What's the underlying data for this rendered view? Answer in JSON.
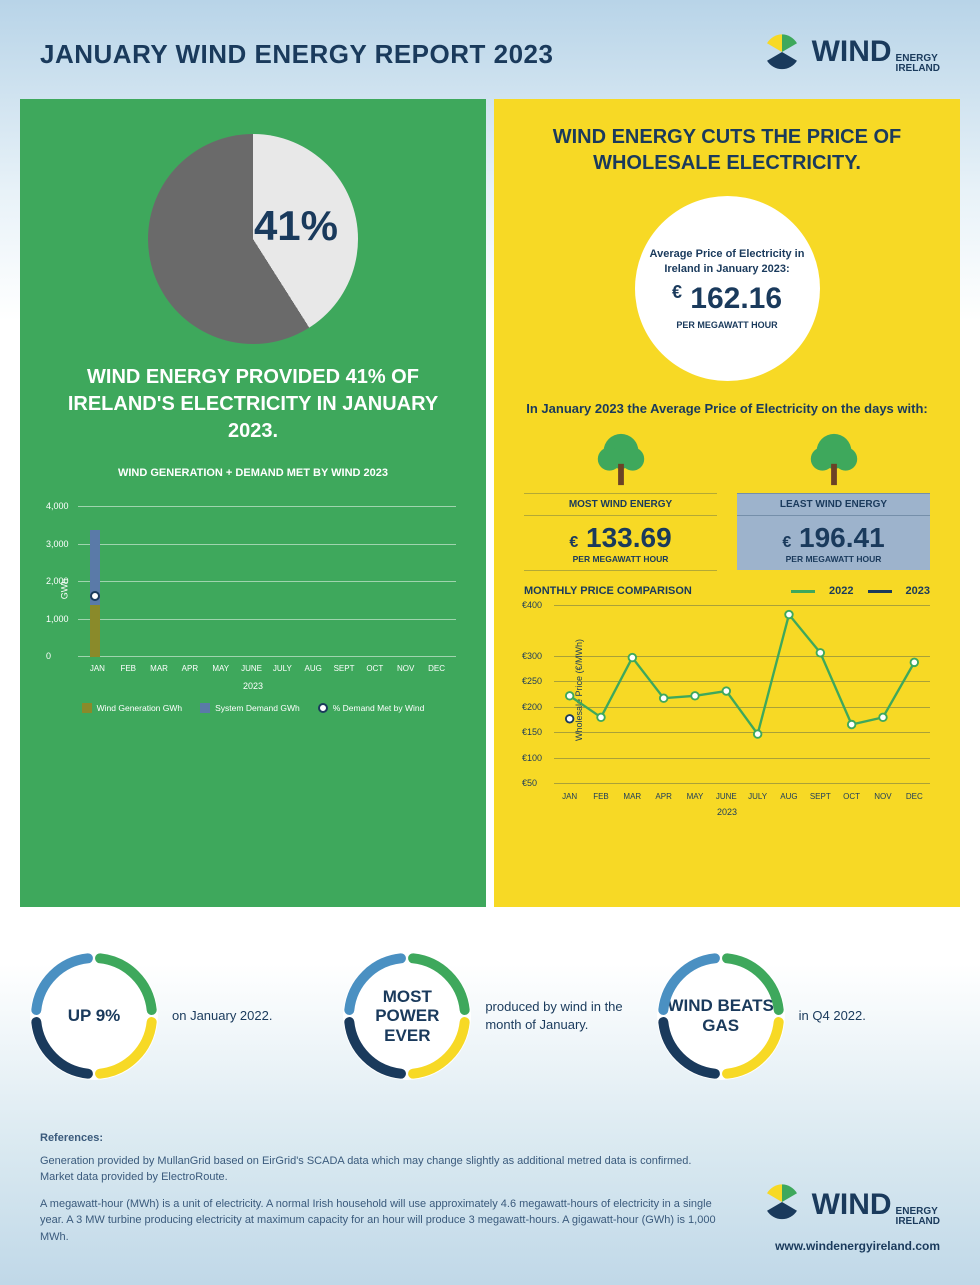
{
  "header": {
    "title": "JANUARY WIND ENERGY REPORT 2023",
    "logo_wind": "WIND",
    "logo_sub1": "ENERGY",
    "logo_sub2": "IRELAND"
  },
  "left_panel": {
    "pie_percent": "41%",
    "pie_slice_deg": 147.6,
    "statement": "WIND ENERGY PROVIDED 41% OF IRELAND'S ELECTRICITY IN JANUARY 2023.",
    "bar_chart": {
      "title": "WIND GENERATION + DEMAND MET BY WIND 2023",
      "y_label": "GWh",
      "y_ticks": [
        "0",
        "1,000",
        "2,000",
        "3,000",
        "4,000"
      ],
      "y_max": 4000,
      "months": [
        "JAN",
        "FEB",
        "MAR",
        "APR",
        "MAY",
        "JUNE",
        "JULY",
        "AUG",
        "SEPT",
        "OCT",
        "NOV",
        "DEC"
      ],
      "year": "2023",
      "wind_gen": [
        1400,
        null,
        null,
        null,
        null,
        null,
        null,
        null,
        null,
        null,
        null,
        null
      ],
      "demand": [
        3400,
        null,
        null,
        null,
        null,
        null,
        null,
        null,
        null,
        null,
        null,
        null
      ],
      "pct_met": [
        41,
        null,
        null,
        null,
        null,
        null,
        null,
        null,
        null,
        null,
        null,
        null
      ],
      "colors": {
        "wind": "#8a8a2a",
        "demand": "#5a7aa8",
        "marker": "#ffffff",
        "marker_border": "#1a3a5c"
      },
      "legend": {
        "wind": "Wind Generation GWh",
        "demand": "System Demand GWh",
        "pct": "% Demand Met by Wind"
      }
    }
  },
  "right_panel": {
    "title": "WIND ENERGY CUTS THE PRICE OF WHOLESALE ELECTRICITY.",
    "avg_price": {
      "caption": "Average Price of Electricity in Ireland in January 2023:",
      "currency": "€",
      "value": "162.16",
      "unit": "PER MEGAWATT HOUR"
    },
    "days_caption": "In January 2023 the Average Price of Electricity on the days with:",
    "most": {
      "label": "MOST WIND ENERGY",
      "price": "133.69",
      "unit": "PER MEGAWATT HOUR"
    },
    "least": {
      "label": "LEAST WIND ENERGY",
      "price": "196.41",
      "unit": "PER MEGAWATT HOUR"
    },
    "line_chart": {
      "title": "MONTHLY PRICE COMPARISON",
      "y_label": "Wholesale Price (€/MWh)",
      "legend": {
        "y2022": "2022",
        "y2023": "2023"
      },
      "colors": {
        "y2022": "#3ea85c",
        "y2023": "#1a3a5c"
      },
      "y_ticks": [
        "€50",
        "€100",
        "€150",
        "€200",
        "€250",
        "€300",
        "€400"
      ],
      "y_values": [
        50,
        100,
        150,
        200,
        250,
        300,
        400
      ],
      "y_min": 50,
      "y_max": 400,
      "months": [
        "JAN",
        "FEB",
        "MAR",
        "APR",
        "MAY",
        "JUNE",
        "JULY",
        "AUG",
        "SEPT",
        "OCT",
        "NOV",
        "DEC"
      ],
      "year": "2023",
      "series_2022": [
        210,
        165,
        290,
        205,
        210,
        220,
        130,
        380,
        300,
        150,
        165,
        280
      ],
      "series_2023": [
        162,
        null,
        null,
        null,
        null,
        null,
        null,
        null,
        null,
        null,
        null,
        null
      ]
    }
  },
  "facts": [
    {
      "headline": "UP 9%",
      "caption": "on January 2022."
    },
    {
      "headline": "MOST POWER EVER",
      "caption": "produced by wind in the month of January."
    },
    {
      "headline": "WIND BEATS GAS",
      "caption": "in Q4 2022."
    }
  ],
  "footer": {
    "refs_title": "References:",
    "p1": "Generation provided by MullanGrid based on EirGrid's SCADA data which may change slightly as additional metred data is confirmed. Market data provided by ElectroRoute.",
    "p2": "A megawatt-hour (MWh) is a unit of electricity. A normal Irish household will use approximately 4.6 megawatt-hours of electricity in a single year. A 3 MW turbine producing electricity at maximum capacity for an hour will produce 3 megawatt-hours. A gigawatt-hour (GWh) is 1,000 MWh.",
    "url": "www.windenergyireland.com"
  },
  "ring_colors": [
    "#3ea85c",
    "#f7d925",
    "#1a3a5c",
    "#4a90c2"
  ]
}
